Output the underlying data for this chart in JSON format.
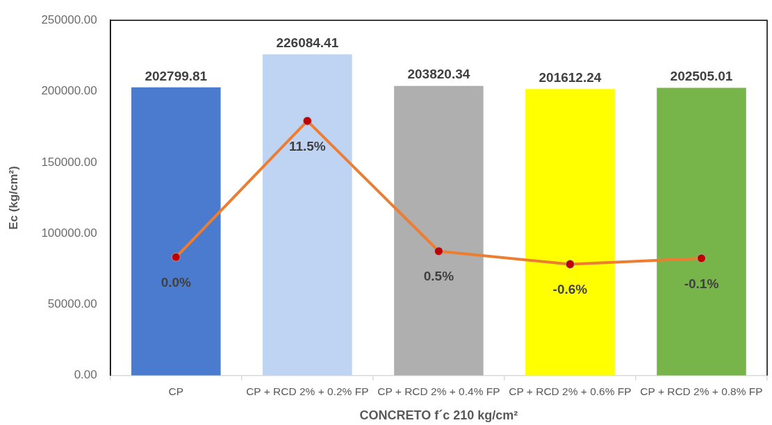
{
  "chart_data": {
    "type": "bar",
    "categories": [
      "CP",
      "CP + RCD 2% + 0.2% FP",
      "CP + RCD 2% + 0.4% FP",
      "CP + RCD 2% + 0.6% FP",
      "CP + RCD 2% + 0.8% FP"
    ],
    "series": [
      {
        "colors": [
          "#4b7bcf",
          "#bfd3f2",
          "#afafaf",
          "#ffff00",
          "#77b54a"
        ],
        "values": [
          202799.81,
          226084.41,
          203820.34,
          201612.24,
          202505.01
        ],
        "value_labels": [
          "202799.81",
          "226084.41",
          "203820.34",
          "201612.24",
          "202505.01"
        ]
      },
      {
        "type": "line",
        "axis": "y2",
        "color": "#ed7d31",
        "colors": [
          "#c00000",
          "#c00000",
          "#c00000",
          "#c00000",
          "#c00000"
        ],
        "values": [
          0.0,
          11.5,
          0.5,
          -0.6,
          -0.1
        ],
        "value_labels": [
          "0.0%",
          "11.5%",
          "0.5%",
          "-0.6%",
          "-0.1%"
        ]
      }
    ],
    "xlabel": "CONCRETO f´c 210 kg/cm²",
    "ylabel": "Ec (kg/cm²)",
    "ylim": [
      0,
      250000
    ],
    "yticks": [
      {
        "value": 0,
        "label": "0.00"
      },
      {
        "value": 50000,
        "label": "50000.00"
      },
      {
        "value": 100000,
        "label": "100000.00"
      },
      {
        "value": 150000,
        "label": "150000.00"
      },
      {
        "value": 200000,
        "label": "200000.00"
      },
      {
        "value": 250000,
        "label": "250000.00"
      }
    ],
    "y2lim": [
      -10,
      20
    ],
    "marker": "circle",
    "line_style": "solid"
  }
}
